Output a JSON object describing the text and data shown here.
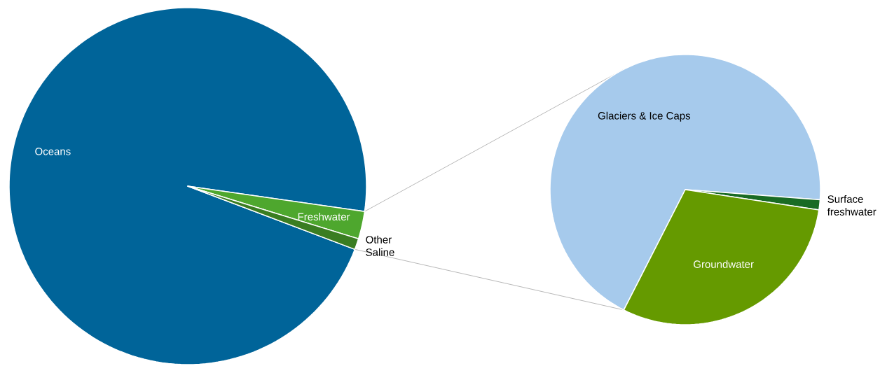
{
  "chart_data": [
    {
      "type": "pie",
      "categories": [
        "Oceans",
        "Freshwater",
        "Other Saline"
      ],
      "values": [
        96.5,
        2.5,
        1.0
      ],
      "colors": [
        "#006499",
        "#4ea72e",
        "#3a7d22"
      ]
    },
    {
      "type": "pie",
      "categories": [
        "Glaciers & Ice Caps",
        "Surface freshwater",
        "Groundwater"
      ],
      "values": [
        68.7,
        1.2,
        30.1
      ],
      "colors": [
        "#a6caec",
        "#196b24",
        "#659a00"
      ]
    }
  ]
}
